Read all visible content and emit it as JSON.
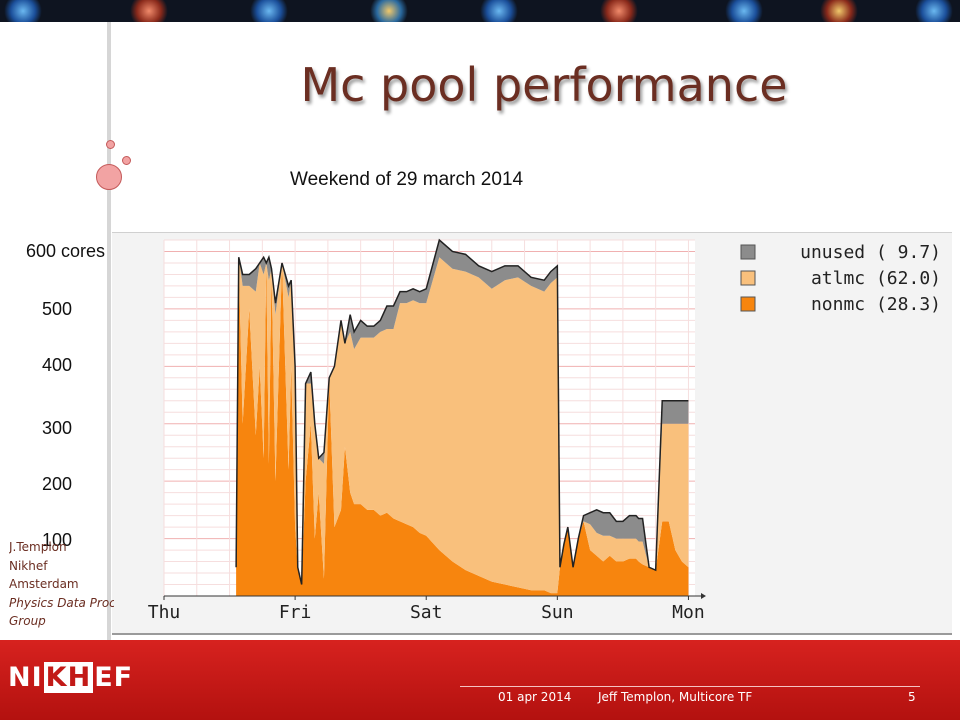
{
  "slide": {
    "title": "Mc pool performance",
    "subtitle": "Weekend of 29 march 2014",
    "author_lines": [
      "J.Templon",
      "Nikhef",
      "Amsterdam",
      "Physics Data Processing",
      "Group"
    ],
    "logo_text": {
      "pre": "NI",
      "mid": "KH",
      "post": "EF"
    },
    "footer": {
      "date": "01 apr 2014",
      "author": "Jeff Templon, Multicore TF",
      "page": "5"
    }
  },
  "colors": {
    "unused": "#8c8c8c",
    "atlmc": "#f9c07c",
    "nonmc": "#f7850e",
    "title": "#6b2e22",
    "band": "#c9191a"
  },
  "chart_data": {
    "type": "area",
    "stacked": true,
    "x_tick_labels": [
      "Thu",
      "Fri",
      "Sat",
      "Sun",
      "Mon"
    ],
    "y_tick_labels": [
      "600 cores",
      "500",
      "400",
      "300",
      "200",
      "100"
    ],
    "y_tick_values": [
      600,
      500,
      400,
      300,
      200,
      100
    ],
    "ylim": [
      0,
      620
    ],
    "xlim": [
      0,
      4.05
    ],
    "legend_position": "top-right",
    "grid": true,
    "legend": [
      {
        "key": "unused",
        "label": "unused ( 9.7)"
      },
      {
        "key": "atlmc",
        "label": "atlmc (62.0)"
      },
      {
        "key": "nonmc",
        "label": "nonmc (28.3)"
      }
    ],
    "x": [
      0.55,
      0.57,
      0.6,
      0.65,
      0.7,
      0.73,
      0.76,
      0.78,
      0.8,
      0.82,
      0.85,
      0.9,
      0.95,
      0.97,
      1.0,
      1.02,
      1.05,
      1.08,
      1.12,
      1.15,
      1.18,
      1.22,
      1.26,
      1.3,
      1.35,
      1.38,
      1.42,
      1.45,
      1.5,
      1.55,
      1.6,
      1.65,
      1.7,
      1.75,
      1.8,
      1.85,
      1.9,
      1.95,
      2.0,
      2.1,
      2.2,
      2.3,
      2.4,
      2.5,
      2.6,
      2.7,
      2.8,
      2.9,
      2.95,
      3.0,
      3.02,
      3.05,
      3.08,
      3.12,
      3.16,
      3.2,
      3.25,
      3.3,
      3.35,
      3.4,
      3.45,
      3.5,
      3.55,
      3.6,
      3.62,
      3.65,
      3.7,
      3.75,
      3.8,
      3.85,
      3.9,
      3.95,
      4.0
    ],
    "series": [
      {
        "key": "nonmc",
        "name": "nonmc",
        "values": [
          50,
          590,
          300,
          500,
          280,
          400,
          240,
          580,
          230,
          570,
          200,
          580,
          220,
          400,
          120,
          50,
          20,
          200,
          300,
          100,
          180,
          30,
          380,
          120,
          150,
          260,
          180,
          160,
          160,
          150,
          150,
          140,
          145,
          135,
          130,
          125,
          120,
          110,
          105,
          80,
          60,
          45,
          35,
          25,
          20,
          15,
          10,
          10,
          5,
          5,
          50,
          90,
          120,
          50,
          100,
          130,
          80,
          70,
          60,
          70,
          60,
          60,
          65,
          65,
          60,
          55,
          50,
          45,
          130,
          130,
          80,
          60,
          50
        ]
      },
      {
        "key": "atlmc",
        "name": "atlmc",
        "values": [
          0,
          0,
          240,
          40,
          250,
          180,
          320,
          0,
          320,
          0,
          290,
          0,
          300,
          150,
          270,
          0,
          0,
          170,
          70,
          200,
          60,
          200,
          0,
          280,
          330,
          180,
          280,
          270,
          290,
          300,
          300,
          320,
          320,
          330,
          380,
          385,
          395,
          400,
          405,
          510,
          510,
          520,
          520,
          510,
          530,
          540,
          530,
          520,
          540,
          550,
          0,
          0,
          0,
          0,
          0,
          0,
          45,
          40,
          45,
          35,
          40,
          40,
          35,
          35,
          35,
          40,
          0,
          0,
          170,
          170,
          220,
          240,
          250
        ]
      },
      {
        "key": "unused",
        "name": "unused",
        "values": [
          0,
          0,
          20,
          20,
          40,
          0,
          30,
          0,
          40,
          0,
          20,
          0,
          20,
          0,
          10,
          0,
          0,
          0,
          20,
          0,
          0,
          20,
          0,
          0,
          0,
          0,
          30,
          30,
          30,
          20,
          20,
          20,
          40,
          40,
          20,
          20,
          20,
          20,
          25,
          30,
          30,
          30,
          20,
          30,
          25,
          20,
          15,
          20,
          20,
          20,
          0,
          0,
          0,
          0,
          0,
          10,
          20,
          40,
          40,
          40,
          30,
          30,
          40,
          40,
          40,
          40,
          0,
          0,
          40,
          40,
          40,
          40,
          40
        ]
      }
    ]
  }
}
